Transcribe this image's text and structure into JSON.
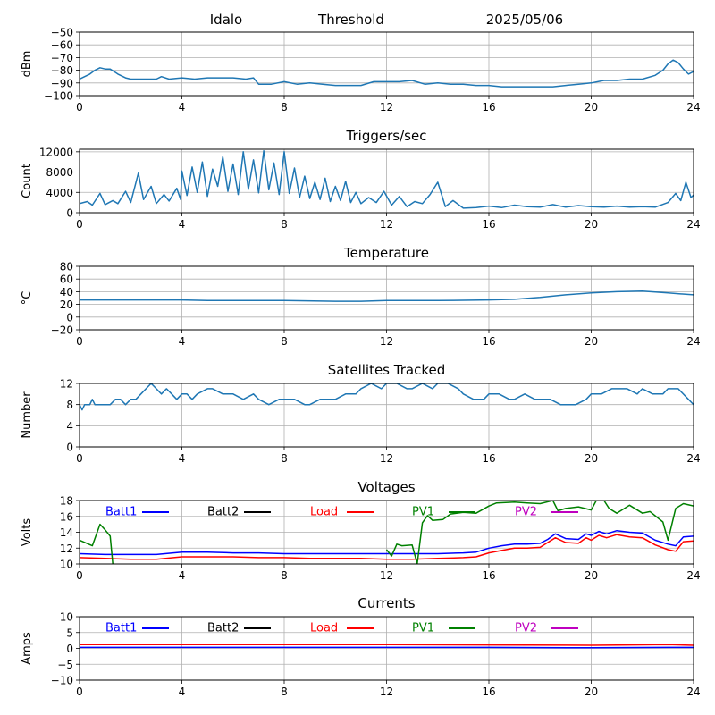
{
  "header": {
    "site": "Idalo",
    "mode": "Threshold",
    "date": "2025/05/06"
  },
  "colors": {
    "default_line": "#1f77b4",
    "grid": "#b0b0b0",
    "batt1": "#0000ff",
    "batt2": "#000000",
    "load": "#ff0000",
    "pv1": "#008000",
    "pv2": "#bf00bf"
  },
  "chart_data": [
    {
      "type": "line",
      "title": "",
      "xlabel": "",
      "ylabel": "dBm",
      "xlim": [
        0,
        24
      ],
      "ylim": [
        -100,
        -50
      ],
      "xticks": [
        0,
        4,
        8,
        12,
        16,
        20,
        24
      ],
      "yticks": [
        -100,
        -90,
        -80,
        -70,
        -60,
        -50
      ],
      "grid": true,
      "series": [
        {
          "color": "#1f77b4",
          "x": [
            0,
            0.2,
            0.4,
            0.6,
            0.8,
            1.0,
            1.2,
            1.5,
            1.8,
            2.0,
            2.5,
            3.0,
            3.2,
            3.5,
            4.0,
            4.5,
            5.0,
            5.5,
            6.0,
            6.5,
            6.8,
            7.0,
            7.5,
            8.0,
            8.5,
            9.0,
            9.5,
            10.0,
            10.5,
            11.0,
            11.5,
            12.0,
            12.5,
            13.0,
            13.5,
            14.0,
            14.5,
            15.0,
            15.5,
            16.0,
            16.5,
            17.0,
            17.5,
            18.0,
            18.5,
            19.0,
            19.5,
            20.0,
            20.5,
            21.0,
            21.5,
            22.0,
            22.5,
            22.8,
            23.0,
            23.2,
            23.4,
            23.6,
            23.8,
            24.0
          ],
          "values": [
            -87,
            -85,
            -83,
            -80,
            -78,
            -79,
            -79,
            -83,
            -86,
            -87,
            -87,
            -87,
            -85,
            -87,
            -86,
            -87,
            -86,
            -86,
            -86,
            -87,
            -86,
            -91,
            -91,
            -89,
            -91,
            -90,
            -91,
            -92,
            -92,
            -92,
            -89,
            -89,
            -89,
            -88,
            -91,
            -90,
            -91,
            -91,
            -92,
            -92,
            -93,
            -93,
            -93,
            -93,
            -93,
            -92,
            -91,
            -90,
            -88,
            -88,
            -87,
            -87,
            -84,
            -80,
            -75,
            -72,
            -74,
            -79,
            -83,
            -81
          ]
        }
      ]
    },
    {
      "type": "line",
      "title": "Triggers/sec",
      "xlabel": "",
      "ylabel": "Count",
      "xlim": [
        0,
        24
      ],
      "ylim": [
        0,
        12500
      ],
      "xticks": [
        0,
        4,
        8,
        12,
        16,
        20,
        24
      ],
      "yticks": [
        0,
        4000,
        8000,
        12000
      ],
      "grid": true,
      "series": [
        {
          "color": "#1f77b4",
          "x": [
            0,
            0.3,
            0.5,
            0.8,
            1.0,
            1.3,
            1.5,
            1.8,
            2.0,
            2.3,
            2.5,
            2.8,
            3.0,
            3.3,
            3.5,
            3.8,
            3.95,
            4.0,
            4.2,
            4.4,
            4.6,
            4.8,
            5.0,
            5.2,
            5.4,
            5.6,
            5.8,
            6.0,
            6.2,
            6.4,
            6.6,
            6.8,
            7.0,
            7.2,
            7.4,
            7.6,
            7.8,
            8.0,
            8.2,
            8.4,
            8.6,
            8.8,
            9.0,
            9.2,
            9.4,
            9.6,
            9.8,
            10.0,
            10.2,
            10.4,
            10.6,
            10.8,
            11.0,
            11.3,
            11.6,
            11.9,
            12.2,
            12.5,
            12.8,
            13.1,
            13.4,
            13.7,
            14.0,
            14.3,
            14.6,
            15.0,
            15.5,
            16.0,
            16.5,
            17.0,
            17.5,
            18.0,
            18.5,
            19.0,
            19.5,
            20.0,
            20.5,
            21.0,
            21.5,
            22.0,
            22.5,
            23.0,
            23.3,
            23.5,
            23.7,
            23.9,
            24.0
          ],
          "values": [
            1800,
            2200,
            1500,
            3800,
            1600,
            2400,
            1800,
            4200,
            2000,
            7800,
            2600,
            5200,
            1800,
            3600,
            2300,
            4800,
            2600,
            8200,
            3400,
            9000,
            4000,
            10000,
            3200,
            8600,
            5200,
            11000,
            4200,
            9600,
            3600,
            12000,
            4600,
            10400,
            3900,
            12200,
            4500,
            9800,
            3600,
            12000,
            3800,
            8800,
            3000,
            7200,
            2800,
            6000,
            2600,
            6800,
            2200,
            5200,
            2400,
            6200,
            2000,
            4000,
            1800,
            3000,
            2000,
            4200,
            1500,
            3200,
            1200,
            2200,
            1800,
            3600,
            6000,
            1200,
            2400,
            900,
            1000,
            1300,
            1000,
            1500,
            1200,
            1100,
            1600,
            1100,
            1400,
            1200,
            1100,
            1300,
            1100,
            1200,
            1100,
            2000,
            3800,
            2400,
            6000,
            3000,
            3500
          ]
        }
      ]
    },
    {
      "type": "line",
      "title": "Temperature",
      "xlabel": "",
      "ylabel": "°C",
      "xlim": [
        0,
        24
      ],
      "ylim": [
        -20,
        80
      ],
      "xticks": [
        0,
        4,
        8,
        12,
        16,
        20,
        24
      ],
      "yticks": [
        -20,
        0,
        20,
        40,
        60,
        80
      ],
      "grid": true,
      "series": [
        {
          "color": "#1f77b4",
          "x": [
            0,
            2,
            4,
            5,
            8,
            10,
            11,
            12,
            14,
            16,
            17,
            18,
            19,
            20,
            21,
            22,
            23,
            24
          ],
          "values": [
            27,
            27,
            27,
            26,
            26,
            25,
            25,
            26,
            26,
            27,
            28,
            31,
            35,
            38,
            40,
            41,
            38,
            35
          ]
        }
      ]
    },
    {
      "type": "line",
      "title": "Satellites Tracked",
      "xlabel": "",
      "ylabel": "Number",
      "xlim": [
        0,
        24
      ],
      "ylim": [
        0,
        12
      ],
      "xticks": [
        0,
        4,
        8,
        12,
        16,
        20,
        24
      ],
      "yticks": [
        0,
        4,
        8,
        12
      ],
      "grid": true,
      "series": [
        {
          "color": "#1f77b4",
          "x": [
            0,
            0.1,
            0.2,
            0.4,
            0.5,
            0.6,
            1.0,
            1.2,
            1.4,
            1.6,
            1.8,
            2.0,
            2.2,
            2.4,
            2.6,
            2.8,
            3.0,
            3.2,
            3.4,
            3.6,
            3.8,
            4.0,
            4.2,
            4.4,
            4.6,
            5.0,
            5.2,
            5.6,
            6.0,
            6.4,
            6.8,
            7.0,
            7.4,
            7.8,
            8.0,
            8.4,
            8.8,
            9.0,
            9.4,
            9.8,
            10.0,
            10.4,
            10.8,
            11.0,
            11.4,
            11.8,
            12.0,
            12.4,
            12.8,
            13.0,
            13.4,
            13.8,
            14.0,
            14.4,
            14.8,
            15.0,
            15.4,
            15.8,
            16.0,
            16.4,
            16.8,
            17.0,
            17.4,
            17.8,
            18.0,
            18.4,
            18.8,
            19.0,
            19.4,
            19.8,
            20.0,
            20.4,
            20.8,
            21.0,
            21.4,
            21.8,
            22.0,
            22.4,
            22.8,
            23.0,
            23.4,
            23.8,
            24.0
          ],
          "values": [
            8,
            7,
            8,
            8,
            9,
            8,
            8,
            8,
            9,
            9,
            8,
            9,
            9,
            10,
            11,
            12,
            11,
            10,
            11,
            10,
            9,
            10,
            10,
            9,
            10,
            11,
            11,
            10,
            10,
            9,
            10,
            9,
            8,
            9,
            9,
            9,
            8,
            8,
            9,
            9,
            9,
            10,
            10,
            11,
            12,
            11,
            12,
            12,
            11,
            11,
            12,
            11,
            12,
            12,
            11,
            10,
            9,
            9,
            10,
            10,
            9,
            9,
            10,
            9,
            9,
            9,
            8,
            8,
            8,
            9,
            10,
            10,
            11,
            11,
            11,
            10,
            11,
            10,
            10,
            11,
            11,
            9,
            8
          ]
        }
      ]
    },
    {
      "type": "line",
      "title": "Voltages",
      "xlabel": "",
      "ylabel": "Volts",
      "xlim": [
        0,
        24
      ],
      "ylim": [
        10,
        18
      ],
      "xticks": [
        0,
        4,
        8,
        12,
        16,
        20,
        24
      ],
      "yticks": [
        10,
        12,
        14,
        16,
        18
      ],
      "grid": true,
      "legend": "top, horizontal",
      "series": [
        {
          "name": "Batt1",
          "color": "#0000ff",
          "x": [
            0,
            1,
            2,
            3,
            4,
            5,
            6,
            7,
            8,
            9,
            10,
            11,
            12,
            13,
            14,
            15,
            15.5,
            16,
            16.5,
            17,
            17.5,
            18,
            18.3,
            18.6,
            19,
            19.5,
            19.8,
            20,
            20.3,
            20.6,
            21,
            21.5,
            22,
            22.5,
            23,
            23.3,
            23.6,
            24
          ],
          "values": [
            11.3,
            11.2,
            11.2,
            11.2,
            11.5,
            11.5,
            11.4,
            11.4,
            11.3,
            11.3,
            11.3,
            11.3,
            11.3,
            11.3,
            11.3,
            11.4,
            11.5,
            12.0,
            12.3,
            12.5,
            12.5,
            12.6,
            13.1,
            13.8,
            13.2,
            13.1,
            13.8,
            13.6,
            14.1,
            13.8,
            14.2,
            14.0,
            13.9,
            13.0,
            12.5,
            12.3,
            13.4,
            13.5
          ]
        },
        {
          "name": "Batt2",
          "color": "#000000",
          "x": [],
          "values": []
        },
        {
          "name": "Load",
          "color": "#ff0000",
          "x": [
            0,
            1,
            2,
            3,
            4,
            5,
            6,
            7,
            8,
            9,
            10,
            11,
            12,
            13,
            14,
            15,
            15.5,
            16,
            16.5,
            17,
            17.5,
            18,
            18.3,
            18.6,
            19,
            19.5,
            19.8,
            20,
            20.3,
            20.6,
            21,
            21.5,
            22,
            22.5,
            23,
            23.3,
            23.6,
            24
          ],
          "values": [
            10.8,
            10.7,
            10.6,
            10.6,
            10.9,
            10.9,
            10.9,
            10.8,
            10.8,
            10.7,
            10.7,
            10.7,
            10.6,
            10.6,
            10.7,
            10.8,
            10.9,
            11.4,
            11.7,
            12.0,
            12.0,
            12.1,
            12.7,
            13.3,
            12.7,
            12.6,
            13.3,
            13.0,
            13.6,
            13.3,
            13.7,
            13.4,
            13.3,
            12.4,
            11.8,
            11.6,
            12.8,
            12.9
          ]
        },
        {
          "name": "PV1",
          "color": "#008000",
          "x": [
            0,
            0.5,
            0.8,
            1.0,
            1.2,
            1.3,
            1.35,
            12.0,
            12.2,
            12.4,
            12.6,
            13.0,
            13.2,
            13.4,
            13.6,
            13.8,
            14.2,
            14.5,
            15.0,
            15.5,
            16.0,
            16.3,
            17.0,
            17.5,
            18.0,
            18.5,
            18.7,
            19.0,
            19.5,
            20.0,
            20.2,
            20.5,
            20.7,
            21.0,
            21.5,
            22.0,
            22.3,
            22.8,
            23.0,
            23.3,
            23.6,
            24.0
          ],
          "values": [
            13.0,
            12.3,
            15.0,
            14.3,
            13.5,
            10.0,
            null,
            11.8,
            11.0,
            12.5,
            12.3,
            12.4,
            10.0,
            15.2,
            16.1,
            15.5,
            15.6,
            16.3,
            16.5,
            16.4,
            17.3,
            17.7,
            17.8,
            17.7,
            17.6,
            18.0,
            16.7,
            17.0,
            17.2,
            16.8,
            18.0,
            18.0,
            17.0,
            16.4,
            17.4,
            16.4,
            16.6,
            15.3,
            13.0,
            17.0,
            17.6,
            17.3
          ]
        },
        {
          "name": "PV2",
          "color": "#bf00bf",
          "x": [],
          "values": []
        }
      ]
    },
    {
      "type": "line",
      "title": "Currents",
      "xlabel": "",
      "ylabel": "Amps",
      "xlim": [
        0,
        24
      ],
      "ylim": [
        -10,
        10
      ],
      "xticks": [
        0,
        4,
        8,
        12,
        16,
        20,
        24
      ],
      "yticks": [
        -10,
        -5,
        0,
        5,
        10
      ],
      "grid": true,
      "legend": "top, horizontal",
      "series": [
        {
          "name": "Batt1",
          "color": "#0000ff",
          "x": [
            0,
            4,
            8,
            12,
            16,
            20,
            23,
            24
          ],
          "values": [
            0.3,
            0.3,
            0.3,
            0.3,
            0.3,
            0.2,
            0.3,
            0.3
          ]
        },
        {
          "name": "Batt2",
          "color": "#000000",
          "x": [],
          "values": []
        },
        {
          "name": "Load",
          "color": "#ff0000",
          "x": [
            0,
            4,
            8,
            12,
            16,
            20,
            23,
            24
          ],
          "values": [
            1.2,
            1.2,
            1.2,
            1.2,
            1.1,
            1.0,
            1.2,
            1.0
          ]
        },
        {
          "name": "PV1",
          "color": "#008000",
          "x": [],
          "values": []
        },
        {
          "name": "PV2",
          "color": "#bf00bf",
          "x": [],
          "values": []
        }
      ]
    }
  ]
}
